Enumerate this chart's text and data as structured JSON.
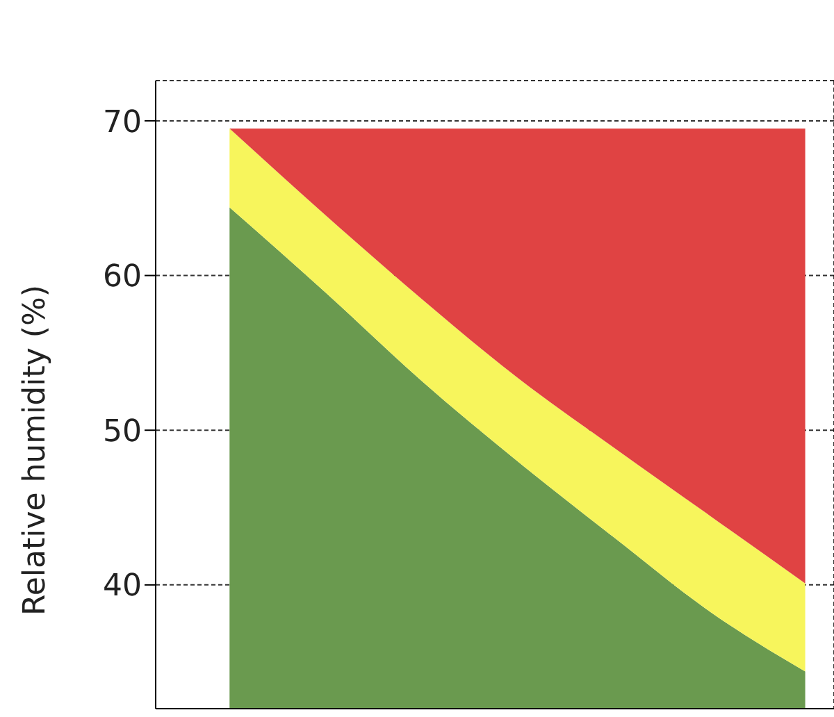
{
  "chart_data": {
    "type": "area",
    "ylabel": "Relative humidity (%)",
    "categories": [
      null,
      null,
      null,
      null,
      null,
      null,
      null
    ],
    "series": [
      {
        "color": "#6a9a4f",
        "values": [
          64.4,
          58.9,
          53.2,
          48.0,
          43.1,
          38.3,
          34.4
        ]
      },
      {
        "color": "#f7f55c",
        "values": [
          69.5,
          63.9,
          58.5,
          53.4,
          48.9,
          44.5,
          40.1
        ]
      },
      {
        "color": "#e04343",
        "values": [
          69.5,
          69.5,
          69.5,
          69.5,
          69.5,
          69.5,
          69.5
        ]
      }
    ],
    "ylim": [
      32,
      72.6
    ],
    "yticks": [
      40,
      50,
      60,
      70
    ],
    "grid": true,
    "legend": false,
    "tick_labels": "y"
  }
}
